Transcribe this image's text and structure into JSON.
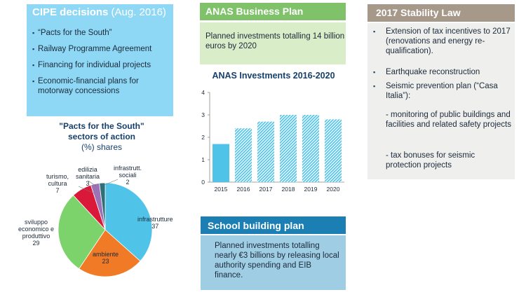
{
  "cipe": {
    "title_bold": "CIPE decisions",
    "title_rest": " (Aug. 2016)",
    "items": [
      "“Pacts for the South”",
      "Railway Programme Agreement",
      "Financing for individual projects",
      "Economic-financial plans for motorway concessions"
    ]
  },
  "pie": {
    "title_line1": "\"Pacts for the South\"",
    "title_line2": "sectors of action",
    "title_line3": "(%) shares"
  },
  "anas": {
    "header": "ANAS Business Plan",
    "body": "Planned investments totalling 14 billion euros by 2020",
    "chart_title": "ANAS Investments 2016-2020"
  },
  "school": {
    "header": "School building plan",
    "body": "Planned investments totalling nearly €3 billions by releasing local authority spending and EIB finance."
  },
  "stability": {
    "header": "2017 Stability Law",
    "items": [
      "Extension of tax incentives to 2017 (renovations and energy re-qualification).",
      "Earthquake reconstruction",
      "Seismic prevention plan (“Casa Italia”):"
    ],
    "subitems": [
      "- monitoring of public buildings and facilities and related safety projects",
      "- tax bonuses for seismic protection projects"
    ]
  },
  "chart_data": [
    {
      "type": "pie",
      "title": "\"Pacts for the South\" sectors of action (%) shares",
      "slices": [
        {
          "label": "infrastrutture",
          "value": 37,
          "color": "#4fc3e8"
        },
        {
          "label": "ambiente",
          "value": 23,
          "color": "#f07a25"
        },
        {
          "label": "sviluppo economico e produttivo",
          "value": 29,
          "color": "#7dd36b"
        },
        {
          "label": "turismo, cultura",
          "value": 7,
          "color": "#d9183a"
        },
        {
          "label": "edilizia sanitaria",
          "value": 3,
          "color": "#9a72b5"
        },
        {
          "label": "infrastrutt. sociali",
          "value": 2,
          "color": "#2e6f78"
        }
      ],
      "label_text": {
        "infrastrutture": [
          "infrastrutture",
          "37"
        ],
        "ambiente": [
          "ambiente",
          "23"
        ],
        "sviluppo": [
          "sviluppo",
          "economico e",
          "produttivo",
          "29"
        ],
        "turismo": [
          "turismo,",
          "cultura",
          "7"
        ],
        "edilizia": [
          "edilizia",
          "sanitaria",
          "3"
        ],
        "sociali": [
          "infrastrutt.",
          "sociali",
          "2"
        ]
      }
    },
    {
      "type": "bar",
      "title": "ANAS Investments 2016-2020",
      "categories": [
        "2015",
        "2016",
        "2017",
        "2018",
        "2019",
        "2020"
      ],
      "values": [
        1.7,
        2.4,
        2.7,
        3.0,
        3.0,
        2.8
      ],
      "ylim": [
        0,
        4
      ],
      "yticks": [
        "0",
        "1",
        "2",
        "3",
        "4"
      ],
      "bar_color": "#4fc3e8",
      "hatched_from_index": 1,
      "grid": false
    }
  ]
}
